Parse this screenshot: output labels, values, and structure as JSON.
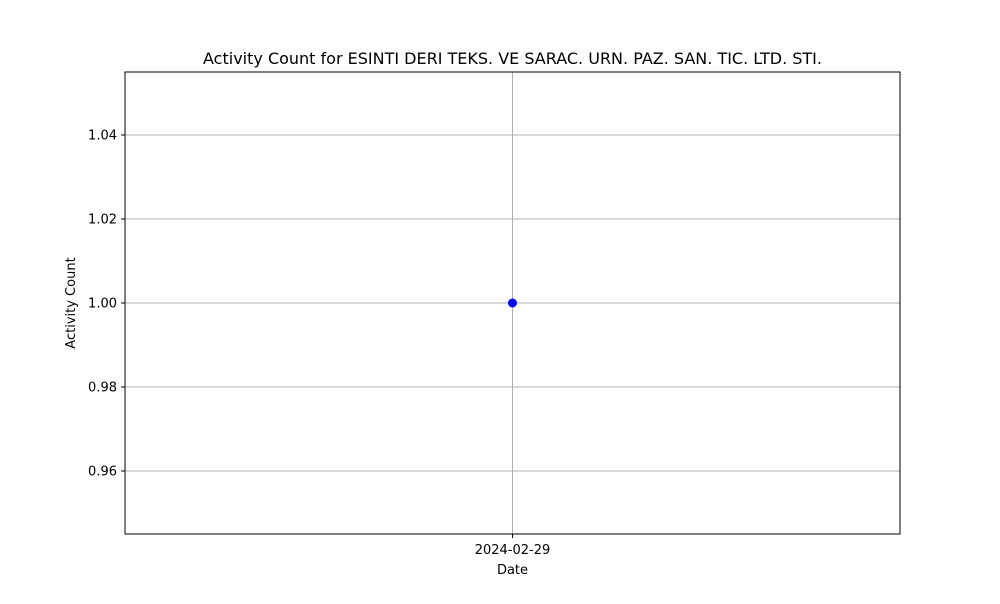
{
  "chart_data": {
    "type": "line",
    "title": "Activity Count for ESINTI DERI TEKS. VE SARAC. URN. PAZ. SAN. TIC. LTD. STI.",
    "xlabel": "Date",
    "ylabel": "Activity Count",
    "x_ticks": [
      "2024-02-29"
    ],
    "y_ticks": [
      0.96,
      0.98,
      1.0,
      1.02,
      1.04
    ],
    "y_tick_labels": [
      "0.96",
      "0.98",
      "1.00",
      "1.02",
      "1.04"
    ],
    "ylim": [
      0.945,
      1.055
    ],
    "grid": true,
    "series": [
      {
        "x": [
          "2024-02-29"
        ],
        "y": [
          1
        ],
        "color": "#0000ff",
        "marker": "circle"
      }
    ]
  }
}
